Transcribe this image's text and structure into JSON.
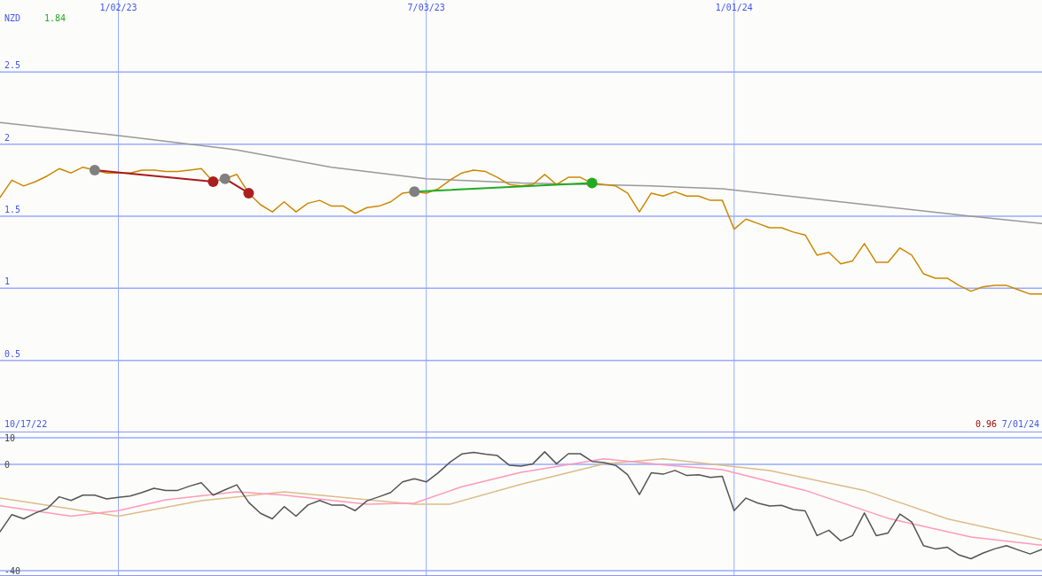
{
  "chart_data": [
    {
      "type": "line",
      "xlim": [
        "2022-10-24",
        "2024-07-01"
      ],
      "xticks": [
        {
          "value": "2023-01-02",
          "label": "1/02/23"
        },
        {
          "value": "2023-07-03",
          "label": "7/03/23"
        },
        {
          "value": "2024-01-01",
          "label": "1/01/24"
        }
      ],
      "ylim": [
        0,
        3
      ],
      "yticks": [
        0.5,
        1,
        1.5,
        2,
        2.5
      ],
      "grid": true,
      "annotations": [
        "NZD",
        "1.84",
        "10/17/22",
        "0.96",
        "7/01/24"
      ],
      "x": [
        "2022-10-24",
        "2022-10-31",
        "2022-11-07",
        "2022-11-14",
        "2022-11-21",
        "2022-11-28",
        "2022-12-05",
        "2022-12-12",
        "2022-12-19",
        "2022-12-26",
        "2023-01-02",
        "2023-01-09",
        "2023-01-16",
        "2023-01-23",
        "2023-01-30",
        "2023-02-06",
        "2023-02-13",
        "2023-02-20",
        "2023-02-27",
        "2023-03-06",
        "2023-03-13",
        "2023-03-20",
        "2023-03-27",
        "2023-04-03",
        "2023-04-10",
        "2023-04-17",
        "2023-04-24",
        "2023-05-01",
        "2023-05-08",
        "2023-05-15",
        "2023-05-22",
        "2023-05-29",
        "2023-06-05",
        "2023-06-12",
        "2023-06-19",
        "2023-06-26",
        "2023-07-03",
        "2023-07-10",
        "2023-07-17",
        "2023-07-24",
        "2023-07-31",
        "2023-08-07",
        "2023-08-14",
        "2023-08-21",
        "2023-08-28",
        "2023-09-04",
        "2023-09-11",
        "2023-09-18",
        "2023-09-25",
        "2023-10-02",
        "2023-10-09",
        "2023-10-16",
        "2023-10-23",
        "2023-10-30",
        "2023-11-06",
        "2023-11-13",
        "2023-11-20",
        "2023-11-27",
        "2023-12-04",
        "2023-12-11",
        "2023-12-18",
        "2023-12-25",
        "2024-01-01",
        "2024-01-08",
        "2024-01-15",
        "2024-01-22",
        "2024-01-29",
        "2024-02-05",
        "2024-02-12",
        "2024-02-19",
        "2024-02-26",
        "2024-03-04",
        "2024-03-11",
        "2024-03-18",
        "2024-03-25",
        "2024-04-01",
        "2024-04-08",
        "2024-04-15",
        "2024-04-22",
        "2024-04-29",
        "2024-05-06",
        "2024-05-13",
        "2024-05-20",
        "2024-05-27",
        "2024-06-03",
        "2024-06-10",
        "2024-06-17",
        "2024-06-24",
        "2024-07-01"
      ],
      "series": [
        {
          "color": "#999999",
          "x": [
            "2022-10-24",
            "2023-01-02",
            "2023-03-13",
            "2023-05-08",
            "2023-07-03",
            "2023-08-28",
            "2023-11-13",
            "2023-12-25",
            "2024-03-11",
            "2024-05-20",
            "2024-07-01"
          ],
          "values": [
            2.15,
            2.06,
            1.96,
            1.84,
            1.76,
            1.73,
            1.71,
            1.69,
            1.59,
            1.5,
            1.45
          ]
        },
        {
          "color": "#cc8800",
          "values": [
            1.63,
            1.75,
            1.71,
            1.74,
            1.78,
            1.83,
            1.8,
            1.84,
            1.82,
            1.8,
            1.8,
            1.8,
            1.82,
            1.82,
            1.81,
            1.81,
            1.82,
            1.83,
            1.74,
            1.76,
            1.79,
            1.66,
            1.58,
            1.53,
            1.6,
            1.53,
            1.59,
            1.61,
            1.57,
            1.57,
            1.52,
            1.56,
            1.57,
            1.6,
            1.66,
            1.67,
            1.66,
            1.69,
            1.75,
            1.8,
            1.82,
            1.81,
            1.77,
            1.72,
            1.71,
            1.72,
            1.79,
            1.72,
            1.77,
            1.77,
            1.73,
            1.72,
            1.71,
            1.66,
            1.53,
            1.66,
            1.64,
            1.67,
            1.64,
            1.64,
            1.61,
            1.61,
            1.41,
            1.48,
            1.45,
            1.42,
            1.42,
            1.39,
            1.37,
            1.23,
            1.25,
            1.17,
            1.19,
            1.31,
            1.18,
            1.18,
            1.28,
            1.23,
            1.1,
            1.07,
            1.07,
            1.02,
            0.98,
            1.01,
            1.02,
            1.02,
            0.99,
            0.96,
            0.96
          ]
        },
        {
          "color": "#aa1a1a",
          "marker": "circle",
          "x": [
            "2022-12-19",
            "2023-02-27"
          ],
          "values": [
            1.82,
            1.74
          ],
          "colors": [
            "#808080",
            "#aa2020"
          ]
        },
        {
          "color": "#aa1a1a",
          "marker": "circle",
          "x": [
            "2023-03-06",
            "2023-03-20"
          ],
          "values": [
            1.76,
            1.66
          ],
          "colors": [
            "#808080",
            "#aa2020"
          ]
        },
        {
          "color": "#22aa22",
          "marker": "circle",
          "x": [
            "2023-06-26",
            "2023-10-09"
          ],
          "values": [
            1.67,
            1.73
          ],
          "colors": [
            "#808080",
            "#22aa22"
          ]
        }
      ]
    },
    {
      "type": "line",
      "xlim": [
        "2022-10-24",
        "2024-07-01"
      ],
      "xticks": [
        {
          "value": "2023-01-02",
          "label": null
        },
        {
          "value": "2023-07-03",
          "label": null
        },
        {
          "value": "2024-01-01",
          "label": null
        }
      ],
      "ylim": [
        -42,
        12
      ],
      "yticks": [
        -40,
        0,
        10
      ],
      "grid": true,
      "tick_labels": "y",
      "x": [
        "2022-10-24",
        "2022-10-31",
        "2022-11-07",
        "2022-11-14",
        "2022-11-21",
        "2022-11-28",
        "2022-12-05",
        "2022-12-12",
        "2022-12-19",
        "2022-12-26",
        "2023-01-02",
        "2023-01-09",
        "2023-01-16",
        "2023-01-23",
        "2023-01-30",
        "2023-02-06",
        "2023-02-13",
        "2023-02-20",
        "2023-02-27",
        "2023-03-06",
        "2023-03-13",
        "2023-03-20",
        "2023-03-27",
        "2023-04-03",
        "2023-04-10",
        "2023-04-17",
        "2023-04-24",
        "2023-05-01",
        "2023-05-08",
        "2023-05-15",
        "2023-05-22",
        "2023-05-29",
        "2023-06-05",
        "2023-06-12",
        "2023-06-19",
        "2023-06-26",
        "2023-07-03",
        "2023-07-10",
        "2023-07-17",
        "2023-07-24",
        "2023-07-31",
        "2023-08-07",
        "2023-08-14",
        "2023-08-21",
        "2023-08-28",
        "2023-09-04",
        "2023-09-11",
        "2023-09-18",
        "2023-09-25",
        "2023-10-02",
        "2023-10-09",
        "2023-10-16",
        "2023-10-23",
        "2023-10-30",
        "2023-11-06",
        "2023-11-13",
        "2023-11-20",
        "2023-11-27",
        "2023-12-04",
        "2023-12-11",
        "2023-12-18",
        "2023-12-25",
        "2024-01-01",
        "2024-01-08",
        "2024-01-15",
        "2024-01-22",
        "2024-01-29",
        "2024-02-05",
        "2024-02-12",
        "2024-02-19",
        "2024-02-26",
        "2024-03-04",
        "2024-03-11",
        "2024-03-18",
        "2024-03-25",
        "2024-04-01",
        "2024-04-08",
        "2024-04-15",
        "2024-04-22",
        "2024-04-29",
        "2024-05-06",
        "2024-05-13",
        "2024-05-20",
        "2024-05-27",
        "2024-06-03",
        "2024-06-10",
        "2024-06-17",
        "2024-06-24",
        "2024-07-01"
      ],
      "series": [
        {
          "color": "#ddbb88",
          "x": [
            "2022-10-24",
            "2023-01-02",
            "2023-02-20",
            "2023-04-10",
            "2023-06-26",
            "2023-07-17",
            "2023-08-28",
            "2023-10-16",
            "2023-11-20",
            "2024-01-22",
            "2024-03-18",
            "2024-05-06",
            "2024-07-01"
          ],
          "values": [
            -12.7,
            -19.5,
            -13.7,
            -10.3,
            -15,
            -15,
            -7.5,
            0.2,
            2.1,
            -2.3,
            -9.8,
            -20.5,
            -28.3
          ]
        },
        {
          "color": "#ff99bb",
          "x": [
            "2022-10-24",
            "2022-12-05",
            "2023-01-02",
            "2023-01-30",
            "2023-03-13",
            "2023-04-10",
            "2023-05-29",
            "2023-06-26",
            "2023-07-24",
            "2023-08-28",
            "2023-10-16",
            "2023-11-20",
            "2023-12-25",
            "2024-02-12",
            "2024-04-01",
            "2024-05-20",
            "2024-07-01"
          ],
          "values": [
            -15.6,
            -19.5,
            -17.4,
            -13.3,
            -10.3,
            -11.6,
            -15,
            -14.6,
            -8.4,
            -3,
            2.1,
            -0.2,
            -2,
            -9.8,
            -20.3,
            -27.3,
            -30.4
          ]
        },
        {
          "color": "#555555",
          "values": [
            -25.4,
            -18.9,
            -20.5,
            -18.3,
            -16.6,
            -12.2,
            -13.6,
            -11.6,
            -11.6,
            -13,
            -12.4,
            -11.9,
            -10.6,
            -9,
            -9.8,
            -9.8,
            -8.2,
            -6.9,
            -11.6,
            -9.6,
            -7.7,
            -14.3,
            -18.4,
            -20.5,
            -15.9,
            -19.5,
            -15.3,
            -13.6,
            -15.3,
            -15.3,
            -17.4,
            -13.7,
            -12.2,
            -10.6,
            -6.6,
            -5.4,
            -6.6,
            -3.2,
            0.8,
            3.9,
            4.5,
            3.8,
            3.3,
            -0.3,
            -0.7,
            0.2,
            4.7,
            0.2,
            4,
            4,
            1.1,
            0.7,
            -0.4,
            -3.9,
            -11.4,
            -3.2,
            -3.7,
            -2.3,
            -4.2,
            -3.9,
            -4.9,
            -4.5,
            -17.4,
            -12.7,
            -14.6,
            -15.7,
            -15.4,
            -17,
            -17.5,
            -26.8,
            -24.8,
            -28.8,
            -26.8,
            -18.3,
            -26.8,
            -25.8,
            -18.7,
            -21.7,
            -30.6,
            -31.8,
            -31.2,
            -34.1,
            -35.5,
            -33.4,
            -31.8,
            -30.6,
            -32.2,
            -33.7,
            -32
          ]
        }
      ]
    }
  ]
}
